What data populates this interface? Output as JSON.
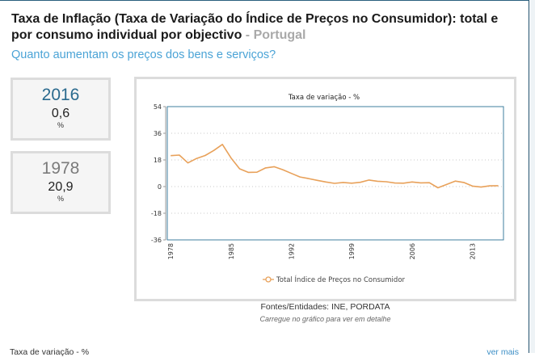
{
  "header": {
    "title_main": "Taxa de Inflação (Taxa de Variação do Índice de Preços no Consumidor): total e por consumo individual por objectivo",
    "title_separator": " - ",
    "country": "Portugal",
    "question_link": "Quanto aumentam os preços dos bens e serviços?"
  },
  "stats": [
    {
      "year": "2016",
      "value": "0,6",
      "unit": "%"
    },
    {
      "year": "1978",
      "value": "20,9",
      "unit": "%"
    }
  ],
  "footer": {
    "sources": "Fontes/Entidades: INE, PORDATA",
    "hint": "Carregue no gráfico para ver em detalhe",
    "bottom_label": "Taxa de variação - %",
    "more_link": "ver mais"
  },
  "colors": {
    "series": "#e8a15a",
    "axis_frame": "#3f7f9f",
    "accent_blue": "#2a6a8e",
    "link": "#4aa3d6"
  },
  "chart_data": {
    "type": "line",
    "title": "Taxa de variação - %",
    "xlabel": "",
    "ylabel": "",
    "ylim": [
      -36,
      54
    ],
    "yticks": [
      54,
      36,
      18,
      0,
      -18,
      -36
    ],
    "xticks": [
      1978,
      1985,
      1992,
      1999,
      2006,
      2013
    ],
    "grid": true,
    "legend_position": "bottom",
    "x": [
      1978,
      1979,
      1980,
      1981,
      1982,
      1983,
      1984,
      1985,
      1986,
      1987,
      1988,
      1989,
      1990,
      1991,
      1992,
      1993,
      1994,
      1995,
      1996,
      1997,
      1998,
      1999,
      2000,
      2001,
      2002,
      2003,
      2004,
      2005,
      2006,
      2007,
      2008,
      2009,
      2010,
      2011,
      2012,
      2013,
      2014,
      2015,
      2016
    ],
    "series": [
      {
        "name": "Total Índice de Preços no Consumidor",
        "values": [
          20.9,
          21.3,
          16.0,
          19.0,
          21.0,
          24.4,
          28.5,
          19.3,
          12.0,
          9.6,
          9.7,
          12.6,
          13.4,
          11.4,
          8.9,
          6.5,
          5.4,
          4.2,
          3.1,
          2.2,
          2.8,
          2.3,
          2.9,
          4.4,
          3.6,
          3.3,
          2.4,
          2.3,
          3.1,
          2.5,
          2.6,
          -0.8,
          1.4,
          3.7,
          2.8,
          0.3,
          -0.3,
          0.5,
          0.6
        ]
      }
    ]
  }
}
